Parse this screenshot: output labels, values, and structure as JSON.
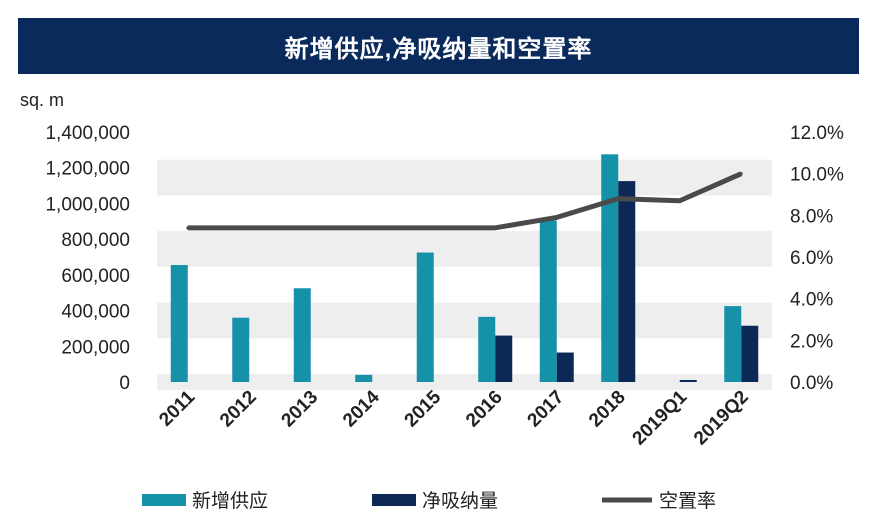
{
  "colors": {
    "title_bg": "#0a2a5c",
    "band": "#eeeeee",
    "new_supply": "#1591a8",
    "net_absorption": "#0c2857",
    "vacancy": "#4a4a4a"
  },
  "chart_data": {
    "type": "bar",
    "title": "新增供应,净吸纳量和空置率",
    "ylabel": "sq. m",
    "categories": [
      "2011",
      "2012",
      "2013",
      "2014",
      "2015",
      "2016",
      "2017",
      "2018",
      "2019Q1",
      "2019Q2"
    ],
    "ylim": [
      0,
      1400000
    ],
    "y_ticks": [
      0,
      200000,
      400000,
      600000,
      800000,
      1000000,
      1200000,
      1400000
    ],
    "y_tick_labels": [
      "0",
      "200,000",
      "400,000",
      "600,000",
      "800,000",
      "1,000,000",
      "1,200,000",
      "1,400,000"
    ],
    "y2lim": [
      0,
      12
    ],
    "y2_ticks": [
      0,
      2,
      4,
      6,
      8,
      10,
      12
    ],
    "y2_tick_labels": [
      "0.0%",
      "2.0%",
      "4.0%",
      "6.0%",
      "8.0%",
      "10.0%",
      "12.0%"
    ],
    "series": [
      {
        "name": "新增供应",
        "kind": "bar",
        "values": [
          655000,
          360000,
          525000,
          40000,
          725000,
          365000,
          905000,
          1275000,
          0,
          425000
        ]
      },
      {
        "name": "净吸纳量",
        "kind": "bar",
        "values": [
          0,
          0,
          0,
          0,
          0,
          260000,
          165000,
          1125000,
          8000,
          315000
        ]
      },
      {
        "name": "空置率",
        "kind": "line",
        "axis": "right",
        "values": [
          7.4,
          7.4,
          7.4,
          7.4,
          7.4,
          7.4,
          7.9,
          8.8,
          8.7,
          10.0
        ]
      }
    ],
    "legend_position": "bottom"
  }
}
